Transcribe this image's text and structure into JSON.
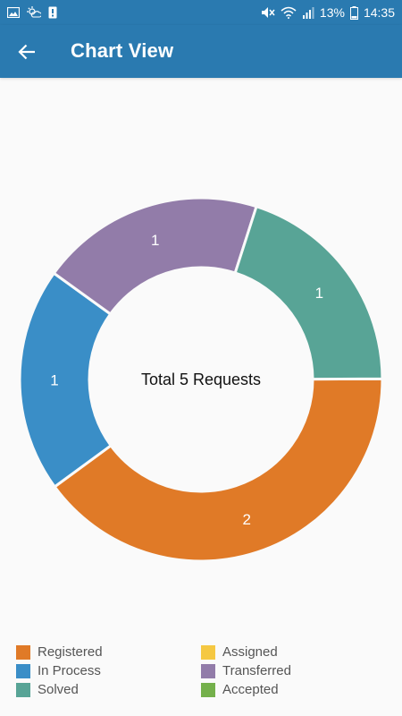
{
  "status_bar": {
    "battery_text": "13%",
    "time": "14:35",
    "icons": [
      "image-icon",
      "weather-icon",
      "alert-icon",
      "mute-icon",
      "wifi-icon",
      "signal-icon",
      "battery-icon"
    ]
  },
  "app_bar": {
    "title": "Chart View",
    "back_icon": "arrow-left-icon"
  },
  "chart_data": {
    "type": "pie",
    "center_text": "Total 5 Requests",
    "slices": [
      {
        "label": "Registered",
        "value": 2,
        "color": "#e07a27"
      },
      {
        "label": "In Process",
        "value": 1,
        "color": "#3a8ec7"
      },
      {
        "label": "Assigned",
        "value": 0,
        "color": "#f5c842"
      },
      {
        "label": "Transferred",
        "value": 1,
        "color": "#927ca9"
      },
      {
        "label": "Solved",
        "value": 1,
        "color": "#58a496"
      },
      {
        "label": "Accepted",
        "value": 0,
        "color": "#74b04b"
      }
    ]
  },
  "legend": {
    "items": [
      {
        "label": "Registered",
        "color": "#e07a27"
      },
      {
        "label": "Assigned",
        "color": "#f5c842"
      },
      {
        "label": "In Process",
        "color": "#3a8ec7"
      },
      {
        "label": "Transferred",
        "color": "#927ca9"
      },
      {
        "label": "Solved",
        "color": "#58a496"
      },
      {
        "label": "Accepted",
        "color": "#74b04b"
      }
    ]
  }
}
